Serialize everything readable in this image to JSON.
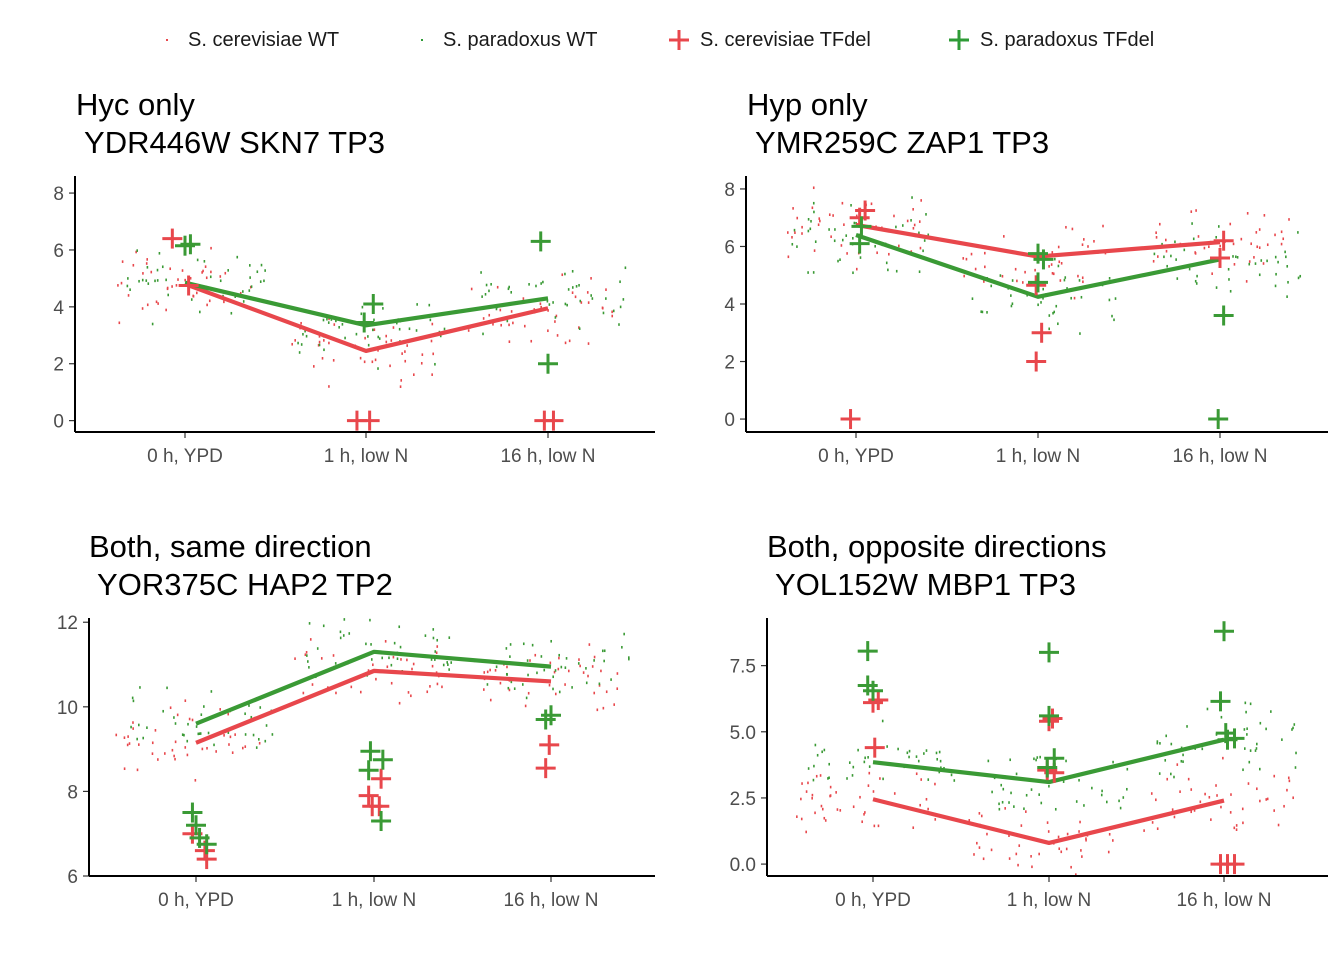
{
  "legend": [
    {
      "label": "S. cerevisiae WT",
      "color": "#e8474c",
      "shape": "dot"
    },
    {
      "label": "S. paradoxus WT",
      "color": "#2e9b36",
      "shape": "dot"
    },
    {
      "label": "S. cerevisiae TFdel",
      "color": "#e8474c",
      "shape": "plus"
    },
    {
      "label": "S. paradoxus TFdel",
      "color": "#2e9b36",
      "shape": "plus"
    }
  ],
  "colors": {
    "cerevisiae": "#e8474c",
    "paradoxus": "#3a9a35"
  },
  "chart_data": [
    {
      "type": "line",
      "title": "Hyc only",
      "subtitle": " YDR446W SKN7 TP3",
      "categories": [
        "0 h, YPD",
        "1 h, low N",
        "16 h, low N"
      ],
      "ylim": [
        -0.4,
        8.6
      ],
      "yticks": [
        0,
        2,
        4,
        6,
        8
      ],
      "yticklabels": [
        "0",
        "2",
        "4",
        "6",
        "8"
      ],
      "series": [
        {
          "name": "S. cerevisiae WT",
          "values": [
            4.8,
            2.45,
            3.95
          ]
        },
        {
          "name": "S. paradoxus WT",
          "values": [
            4.85,
            3.35,
            4.3
          ]
        }
      ],
      "tfdel": [
        {
          "name": "S. cerevisiae TFdel",
          "points": [
            [
              0.93,
              6.4
            ],
            [
              1.02,
              4.75
            ],
            [
              1.95,
              0.0
            ],
            [
              2.02,
              0.0
            ],
            [
              2.98,
              0.0
            ],
            [
              3.03,
              0.0
            ]
          ]
        },
        {
          "name": "S. paradoxus TFdel",
          "points": [
            [
              1.0,
              6.15
            ],
            [
              1.03,
              6.2
            ],
            [
              1.99,
              3.45
            ],
            [
              2.04,
              4.1
            ],
            [
              2.96,
              6.3
            ],
            [
              3.0,
              2.0
            ]
          ]
        }
      ]
    },
    {
      "type": "line",
      "title": "Hyp only",
      "subtitle": " YMR259C ZAP1 TP3",
      "categories": [
        "0 h, YPD",
        "1 h, low N",
        "16 h, low N"
      ],
      "ylim": [
        -0.45,
        8.45
      ],
      "yticks": [
        0,
        2,
        4,
        6,
        8
      ],
      "yticklabels": [
        "0",
        "2",
        "4",
        "6",
        "8"
      ],
      "series": [
        {
          "name": "S. cerevisiae WT",
          "values": [
            6.75,
            5.65,
            6.15
          ]
        },
        {
          "name": "S. paradoxus WT",
          "values": [
            6.4,
            4.25,
            5.55
          ]
        }
      ],
      "tfdel": [
        {
          "name": "S. cerevisiae TFdel",
          "points": [
            [
              0.97,
              0.0
            ],
            [
              1.02,
              7.0
            ],
            [
              1.05,
              7.25
            ],
            [
              1.99,
              2.0
            ],
            [
              2.02,
              3.0
            ],
            [
              1.99,
              4.65
            ],
            [
              3.0,
              5.6
            ],
            [
              3.02,
              6.2
            ]
          ]
        },
        {
          "name": "S. paradoxus TFdel",
          "points": [
            [
              1.02,
              6.1
            ],
            [
              1.03,
              6.7
            ],
            [
              2.0,
              5.75
            ],
            [
              2.03,
              5.55
            ],
            [
              2.0,
              4.75
            ],
            [
              2.99,
              0.0
            ],
            [
              3.02,
              3.6
            ]
          ]
        }
      ]
    },
    {
      "type": "line",
      "title": "Both, same direction",
      "subtitle": " YOR375C HAP2 TP2",
      "categories": [
        "0 h, YPD",
        "1 h, low N",
        "16 h, low N"
      ],
      "ylim": [
        6.0,
        12.1
      ],
      "yticks": [
        6,
        8,
        10,
        12
      ],
      "yticklabels": [
        "6",
        "8",
        "10",
        "12"
      ],
      "series": [
        {
          "name": "S. cerevisiae WT",
          "values": [
            9.15,
            10.85,
            10.6
          ]
        },
        {
          "name": "S. paradoxus WT",
          "values": [
            9.6,
            11.3,
            10.95
          ]
        }
      ],
      "tfdel": [
        {
          "name": "S. cerevisiae TFdel",
          "points": [
            [
              0.98,
              7.0
            ],
            [
              1.05,
              6.6
            ],
            [
              1.06,
              6.4
            ],
            [
              1.97,
              7.9
            ],
            [
              1.99,
              7.65
            ],
            [
              2.03,
              7.65
            ],
            [
              2.04,
              8.3
            ],
            [
              2.97,
              8.55
            ],
            [
              2.99,
              9.1
            ]
          ]
        },
        {
          "name": "S. paradoxus TFdel",
          "points": [
            [
              0.98,
              7.5
            ],
            [
              1.0,
              7.2
            ],
            [
              1.02,
              6.9
            ],
            [
              1.06,
              6.75
            ],
            [
              1.97,
              8.5
            ],
            [
              1.98,
              8.95
            ],
            [
              2.05,
              8.75
            ],
            [
              2.04,
              7.3
            ],
            [
              2.97,
              9.7
            ],
            [
              3.0,
              9.8
            ]
          ]
        }
      ]
    },
    {
      "type": "line",
      "title": "Both, opposite directions",
      "subtitle": " YOL152W MBP1 TP3",
      "categories": [
        "0 h, YPD",
        "1 h, low N",
        "16 h, low N"
      ],
      "ylim": [
        -0.45,
        9.3
      ],
      "yticks": [
        0,
        2.5,
        5,
        7.5
      ],
      "yticklabels": [
        "0.0",
        "2.5",
        "5.0",
        "7.5"
      ],
      "series": [
        {
          "name": "S. cerevisiae WT",
          "values": [
            2.45,
            0.8,
            2.4
          ]
        },
        {
          "name": "S. paradoxus WT",
          "values": [
            3.85,
            3.1,
            4.7
          ]
        }
      ],
      "tfdel": [
        {
          "name": "S. cerevisiae TFdel",
          "points": [
            [
              1.0,
              6.1
            ],
            [
              1.03,
              6.2
            ],
            [
              1.01,
              4.4
            ],
            [
              2.0,
              5.4
            ],
            [
              2.02,
              5.5
            ],
            [
              1.99,
              3.55
            ],
            [
              2.03,
              3.45
            ],
            [
              2.98,
              0.0
            ],
            [
              3.02,
              0.0
            ],
            [
              3.06,
              0.0
            ]
          ]
        },
        {
          "name": "S. paradoxus TFdel",
          "points": [
            [
              0.97,
              8.05
            ],
            [
              0.97,
              6.75
            ],
            [
              1.0,
              6.55
            ],
            [
              2.0,
              8.0
            ],
            [
              2.0,
              5.6
            ],
            [
              2.03,
              4.0
            ],
            [
              1.99,
              3.65
            ],
            [
              3.0,
              8.8
            ],
            [
              2.98,
              6.15
            ],
            [
              3.01,
              4.95
            ],
            [
              3.02,
              4.7
            ],
            [
              3.06,
              4.75
            ]
          ]
        }
      ]
    }
  ]
}
